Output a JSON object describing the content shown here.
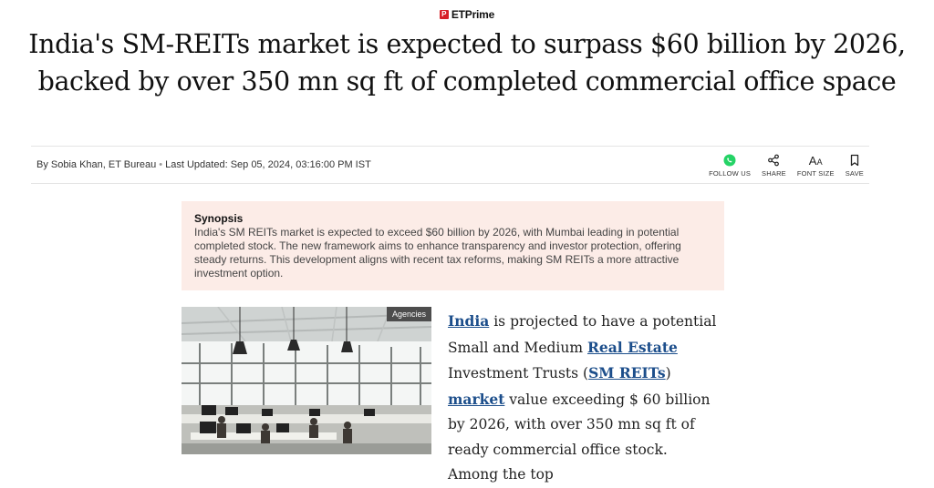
{
  "brand": {
    "name": "ETPrime",
    "logo_glyph": "P"
  },
  "headline": "India's SM-REITs market is expected to surpass $60 billion by 2026, backed by over 350 mn sq ft of completed commercial office space",
  "byline": {
    "author": "By Sobia Khan, ET Bureau",
    "updated": "Last Updated: Sep 05, 2024, 03:16:00 PM IST"
  },
  "actions": {
    "follow": {
      "label": "FOLLOW US",
      "icon": "whatsapp-icon"
    },
    "share": {
      "label": "SHARE",
      "icon": "share-icon"
    },
    "font": {
      "label": "FONT SIZE",
      "icon": "font-size-icon",
      "glyph": "A",
      "glyph_small": "A"
    },
    "save": {
      "label": "SAVE",
      "icon": "bookmark-icon"
    }
  },
  "synopsis": {
    "title": "Synopsis",
    "text": "India's SM REITs market is expected to exceed $60 billion by 2026, with Mumbai leading in potential completed stock. The new framework aims to enhance transparency and investor protection, offering steady returns. This development aligns with recent tax reforms, making SM REITs a more attractive investment option."
  },
  "image": {
    "credit": "Agencies"
  },
  "article": {
    "link1": "India",
    "t1": " is projected to have a potential Small and Medium ",
    "link2": "Real Estate",
    "t2": " Investment Trusts (",
    "link3": "SM REITs",
    "t3": ") ",
    "link4": "market",
    "t4": " value exceeding $ 60 billion by 2026, with over 350 mn sq ft of ready commercial office stock. Among the top"
  },
  "colors": {
    "brand_red": "#d71f26",
    "link": "#1c4e8b",
    "synopsis_bg": "#fcece7",
    "whatsapp": "#25d366"
  }
}
